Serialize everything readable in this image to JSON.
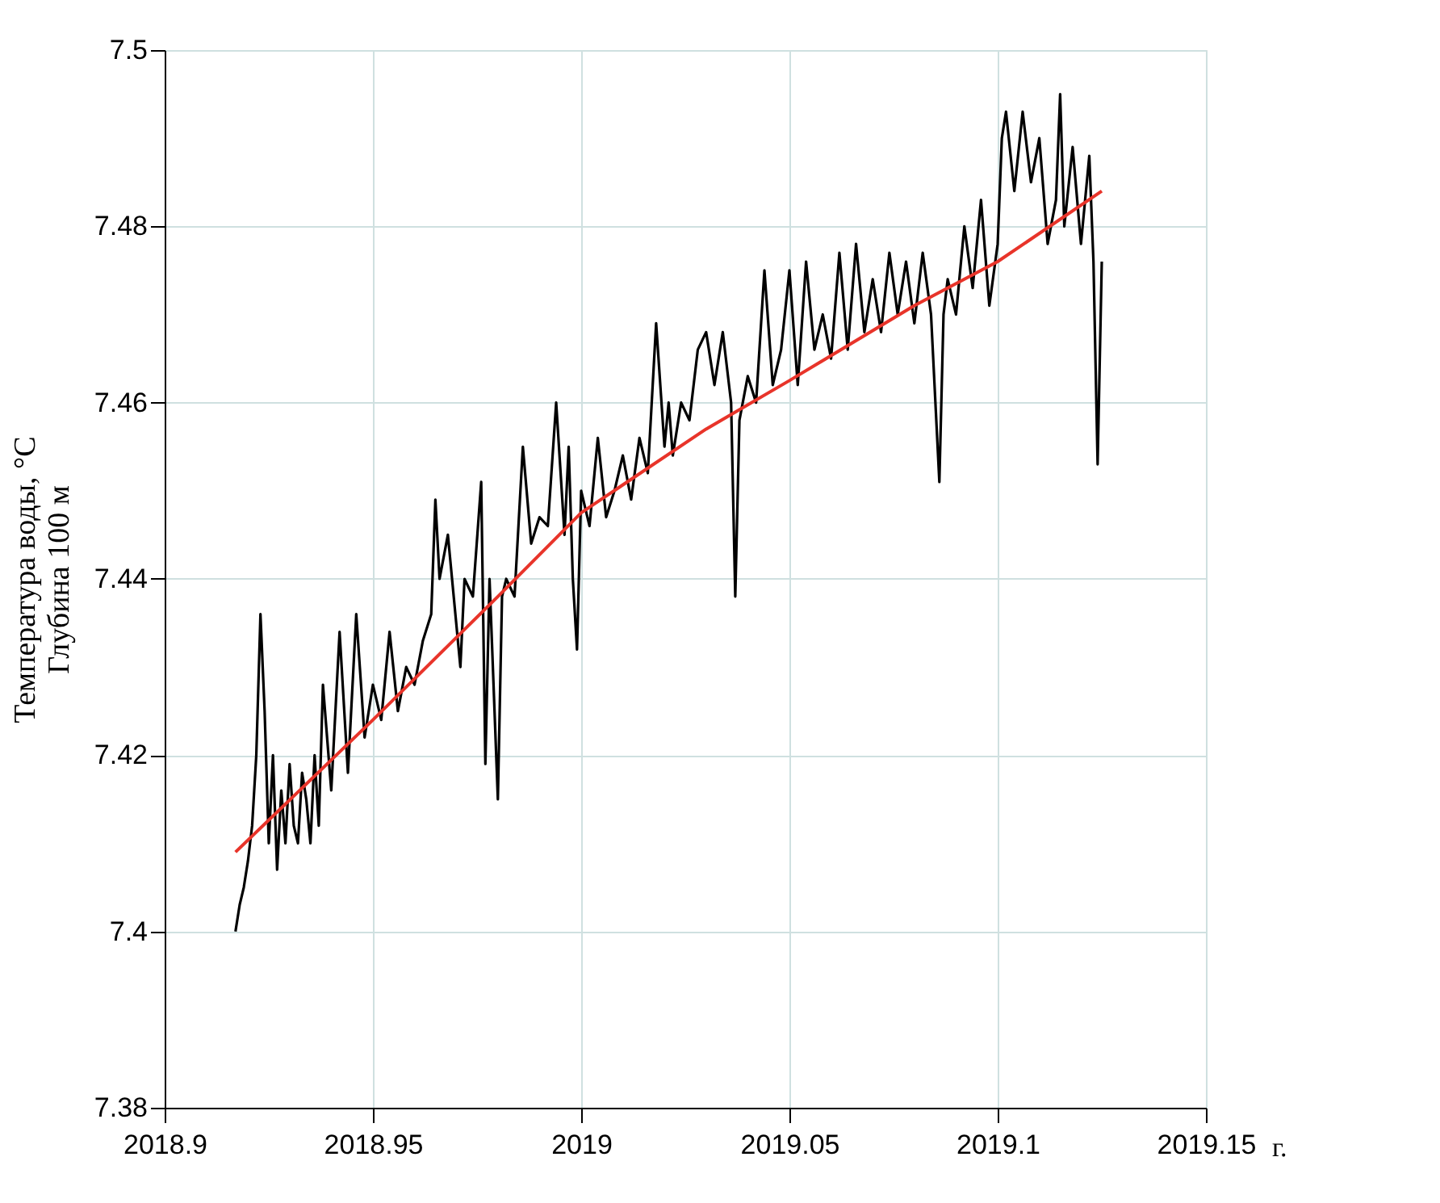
{
  "chart_data": {
    "type": "line",
    "xlabel": "г.",
    "ylabel": "Температура воды, °С\nГлубина 100 м",
    "xlim": [
      2018.9,
      2019.15
    ],
    "xticks": [
      2018.9,
      2018.95,
      2019,
      2019.05,
      2019.1,
      2019.15
    ],
    "ylim": [
      7.38,
      7.5
    ],
    "yticks": [
      7.38,
      7.4,
      7.42,
      7.44,
      7.46,
      7.48,
      7.5
    ],
    "grid": true,
    "marker": "none",
    "line_style": "solid",
    "series": [
      {
        "color": "#000000",
        "x": [
          2018.917,
          2018.918,
          2018.919,
          2018.92,
          2018.921,
          2018.922,
          2018.923,
          2018.924,
          2018.925,
          2018.926,
          2018.927,
          2018.928,
          2018.929,
          2018.93,
          2018.931,
          2018.932,
          2018.933,
          2018.934,
          2018.935,
          2018.936,
          2018.937,
          2018.938,
          2018.94,
          2018.942,
          2018.944,
          2018.946,
          2018.948,
          2018.95,
          2018.952,
          2018.954,
          2018.956,
          2018.958,
          2018.96,
          2018.962,
          2018.964,
          2018.965,
          2018.966,
          2018.968,
          2018.97,
          2018.971,
          2018.972,
          2018.974,
          2018.976,
          2018.977,
          2018.978,
          2018.98,
          2018.981,
          2018.982,
          2018.984,
          2018.986,
          2018.988,
          2018.99,
          2018.992,
          2018.994,
          2018.996,
          2018.997,
          2018.998,
          2018.999,
          2019.0,
          2019.002,
          2019.004,
          2019.006,
          2019.008,
          2019.01,
          2019.012,
          2019.014,
          2019.016,
          2019.018,
          2019.02,
          2019.021,
          2019.022,
          2019.024,
          2019.026,
          2019.028,
          2019.03,
          2019.032,
          2019.034,
          2019.036,
          2019.037,
          2019.038,
          2019.04,
          2019.042,
          2019.044,
          2019.046,
          2019.048,
          2019.05,
          2019.052,
          2019.054,
          2019.056,
          2019.058,
          2019.06,
          2019.062,
          2019.064,
          2019.066,
          2019.068,
          2019.07,
          2019.072,
          2019.074,
          2019.076,
          2019.078,
          2019.08,
          2019.082,
          2019.084,
          2019.086,
          2019.087,
          2019.088,
          2019.09,
          2019.092,
          2019.094,
          2019.096,
          2019.098,
          2019.1,
          2019.101,
          2019.102,
          2019.104,
          2019.106,
          2019.108,
          2019.11,
          2019.112,
          2019.114,
          2019.115,
          2019.116,
          2019.118,
          2019.12,
          2019.122,
          2019.123,
          2019.124,
          2019.125
        ],
        "values": [
          7.4,
          7.403,
          7.405,
          7.408,
          7.412,
          7.42,
          7.436,
          7.425,
          7.41,
          7.42,
          7.407,
          7.416,
          7.41,
          7.419,
          7.412,
          7.41,
          7.418,
          7.415,
          7.41,
          7.42,
          7.412,
          7.428,
          7.416,
          7.434,
          7.418,
          7.436,
          7.422,
          7.428,
          7.424,
          7.434,
          7.425,
          7.43,
          7.428,
          7.433,
          7.436,
          7.449,
          7.44,
          7.445,
          7.435,
          7.43,
          7.44,
          7.438,
          7.451,
          7.419,
          7.44,
          7.415,
          7.438,
          7.44,
          7.438,
          7.455,
          7.444,
          7.447,
          7.446,
          7.46,
          7.445,
          7.455,
          7.44,
          7.432,
          7.45,
          7.446,
          7.456,
          7.447,
          7.45,
          7.454,
          7.449,
          7.456,
          7.452,
          7.469,
          7.455,
          7.46,
          7.454,
          7.46,
          7.458,
          7.466,
          7.468,
          7.462,
          7.468,
          7.46,
          7.438,
          7.458,
          7.463,
          7.46,
          7.475,
          7.462,
          7.466,
          7.475,
          7.462,
          7.476,
          7.466,
          7.47,
          7.465,
          7.477,
          7.466,
          7.478,
          7.468,
          7.474,
          7.468,
          7.477,
          7.47,
          7.476,
          7.469,
          7.477,
          7.47,
          7.451,
          7.47,
          7.474,
          7.47,
          7.48,
          7.473,
          7.483,
          7.471,
          7.478,
          7.49,
          7.493,
          7.484,
          7.493,
          7.485,
          7.49,
          7.478,
          7.483,
          7.495,
          7.48,
          7.489,
          7.478,
          7.488,
          7.476,
          7.453,
          7.476
        ]
      },
      {
        "color": "#e8342a",
        "x": [
          2018.917,
          2018.95,
          2018.98,
          2019.0,
          2019.03,
          2019.05,
          2019.08,
          2019.1,
          2019.125
        ],
        "values": [
          7.409,
          7.424,
          7.438,
          7.4475,
          7.457,
          7.4625,
          7.471,
          7.476,
          7.484
        ]
      }
    ]
  }
}
